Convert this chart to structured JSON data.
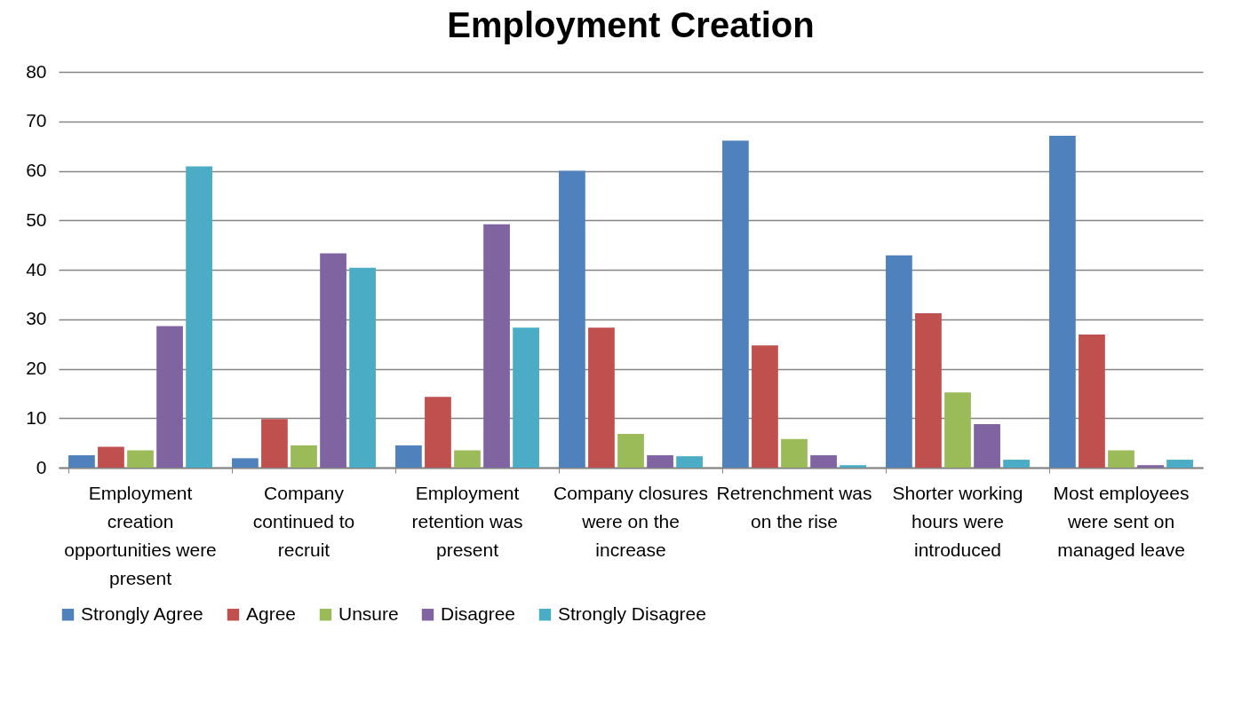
{
  "chart_data": {
    "type": "bar",
    "title": "Employment Creation",
    "categories": [
      "Employment creation opportunities were present",
      "Company continued to recruit",
      "Employment retention was present",
      "Company closures were on the increase",
      "Retrenchment was on the rise",
      "Shorter working hours were introduced",
      "Most employees were sent on managed leave"
    ],
    "series": [
      {
        "name": "Strongly Agree",
        "color": "#4f81bd",
        "values": [
          2.5,
          1.9,
          4.5,
          60.0,
          66.1,
          42.9,
          67.1
        ]
      },
      {
        "name": "Agree",
        "color": "#c0504d",
        "values": [
          4.2,
          9.8,
          14.3,
          28.3,
          24.7,
          31.2,
          26.9
        ]
      },
      {
        "name": "Unsure",
        "color": "#9bbb59",
        "values": [
          3.5,
          4.5,
          3.5,
          6.8,
          5.8,
          15.2,
          3.5
        ]
      },
      {
        "name": "Disagree",
        "color": "#8064a2",
        "values": [
          28.6,
          43.3,
          49.2,
          2.5,
          2.5,
          8.8,
          0.5
        ]
      },
      {
        "name": "Strongly Disagree",
        "color": "#4bacc6",
        "values": [
          60.9,
          40.4,
          28.3,
          2.3,
          0.5,
          1.6,
          1.6
        ]
      }
    ],
    "ylim": [
      0,
      80
    ],
    "yticks": [
      0,
      10,
      20,
      30,
      40,
      50,
      60,
      70,
      80
    ],
    "grid": "y",
    "legend": "bottom"
  }
}
